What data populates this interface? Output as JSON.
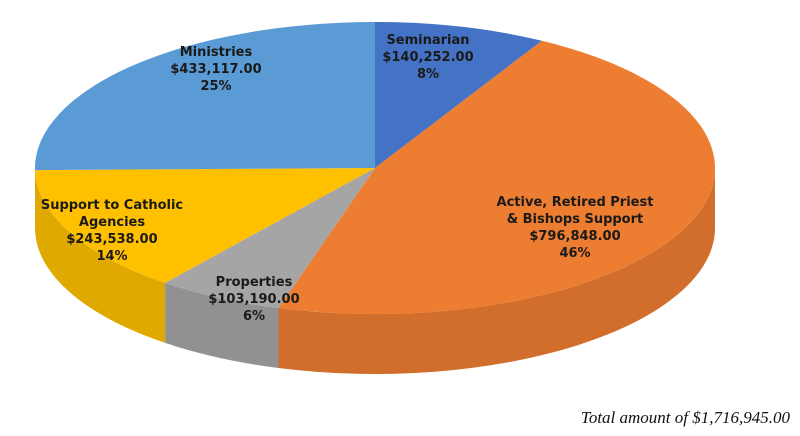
{
  "chart_data": {
    "type": "pie",
    "slices": [
      {
        "name": "Seminarian",
        "amount": "$140,252.00",
        "value": 140252.0,
        "percent": "8%",
        "color": "#4472c4"
      },
      {
        "name": "Active, Retired Priest & Bishops Support",
        "amount": "$796,848.00",
        "value": 796848.0,
        "percent": "46%",
        "color": "#ed7d31"
      },
      {
        "name": "Properties",
        "amount": "$103,190.00",
        "value": 103190.0,
        "percent": "6%",
        "color": "#a5a5a5"
      },
      {
        "name": "Support to Catholic Agencies",
        "amount": "$243,538.00",
        "value": 243538.0,
        "percent": "14%",
        "color": "#ffc000"
      },
      {
        "name": "Ministries",
        "amount": "$433,117.00",
        "value": 433117.0,
        "percent": "25%",
        "color": "#5b9bd5"
      }
    ]
  },
  "total_note": "Total amount of $1,716,945.00"
}
